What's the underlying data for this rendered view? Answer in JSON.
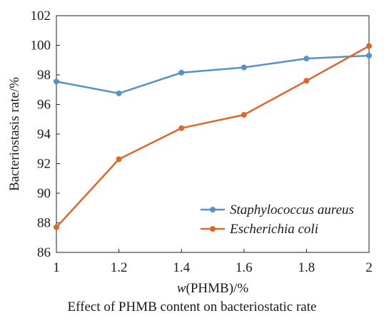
{
  "caption": "Effect of PHMB content on bacteriostatic rate",
  "chart_data": {
    "type": "line",
    "title": "",
    "xlabel_prefix": "w",
    "xlabel_rest": "(PHMB)/%",
    "ylabel": "Bacteriostasis rate/%",
    "x": [
      1,
      1.2,
      1.4,
      1.6,
      1.8,
      2
    ],
    "xticks": [
      "1",
      "1.2",
      "1.4",
      "1.6",
      "1.8",
      "2"
    ],
    "yticks": [
      "86",
      "88",
      "90",
      "92",
      "94",
      "96",
      "98",
      "100",
      "102"
    ],
    "xlim": [
      1,
      2
    ],
    "ylim": [
      86,
      102
    ],
    "grid": false,
    "legend_position": "bottom-right",
    "series": [
      {
        "name": "Staphylococcus aureus",
        "color": "#5b8fcb",
        "values": [
          97.55,
          96.75,
          98.15,
          98.5,
          99.1,
          99.3
        ]
      },
      {
        "name": "Escherichia coli",
        "color": "#e0652d",
        "values": [
          87.7,
          92.3,
          94.4,
          95.3,
          97.6,
          99.95
        ]
      }
    ]
  }
}
